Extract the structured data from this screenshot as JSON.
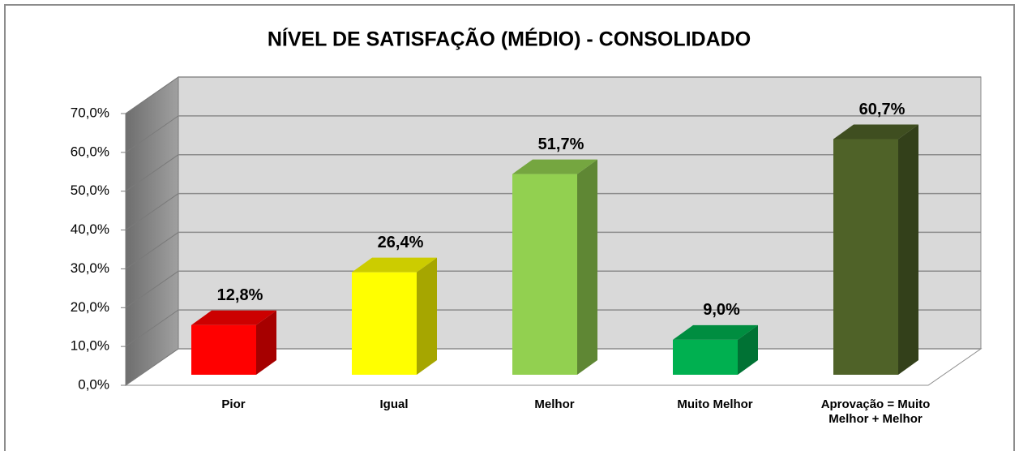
{
  "chart_data": {
    "type": "bar3d",
    "title": "NÍVEL DE SATISFAÇÃO (MÉDIO) - CONSOLIDADO",
    "categories": [
      "Pior",
      "Igual",
      "Melhor",
      "Muito Melhor",
      "Aprovação = Muito Melhor + Melhor"
    ],
    "values": [
      12.8,
      26.4,
      51.7,
      9.0,
      60.7
    ],
    "value_labels": [
      "12,8%",
      "26,4%",
      "51,7%",
      "9,0%",
      "60,7%"
    ],
    "colors": [
      "#ff0000",
      "#ffff00",
      "#92d050",
      "#00b050",
      "#4f6228"
    ],
    "ylim": [
      0,
      70
    ],
    "yticks": [
      {
        "value": 0,
        "label": "0,0%"
      },
      {
        "value": 10,
        "label": "10,0%"
      },
      {
        "value": 20,
        "label": "20,0%"
      },
      {
        "value": 30,
        "label": "30,0%"
      },
      {
        "value": 40,
        "label": "40,0%"
      },
      {
        "value": 50,
        "label": "50,0%"
      },
      {
        "value": 60,
        "label": "60,0%"
      },
      {
        "value": 70,
        "label": "70,0%"
      }
    ],
    "grid": true
  }
}
